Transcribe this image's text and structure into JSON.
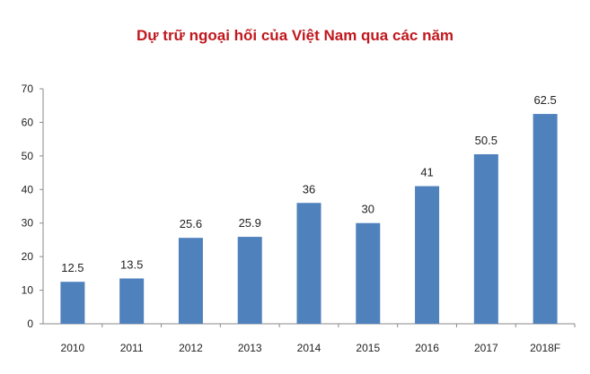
{
  "chart_data": {
    "type": "bar",
    "title": "Dự trữ ngoại hối của Việt Nam qua các năm",
    "categories": [
      "2010",
      "2011",
      "2012",
      "2013",
      "2014",
      "2015",
      "2016",
      "2017",
      "2018F"
    ],
    "values": [
      12.5,
      13.5,
      25.6,
      25.9,
      36,
      30,
      41,
      50.5,
      62.5
    ],
    "data_labels": [
      "12.5",
      "13.5",
      "25.6",
      "25.9",
      "36",
      "30",
      "41",
      "50.5",
      "62.5"
    ],
    "ylim": [
      0,
      70
    ],
    "yticks": [
      0,
      10,
      20,
      30,
      40,
      50,
      60,
      70
    ],
    "xlabel": "",
    "ylabel": "",
    "grid": false,
    "bar_color": "#4f81bd"
  }
}
